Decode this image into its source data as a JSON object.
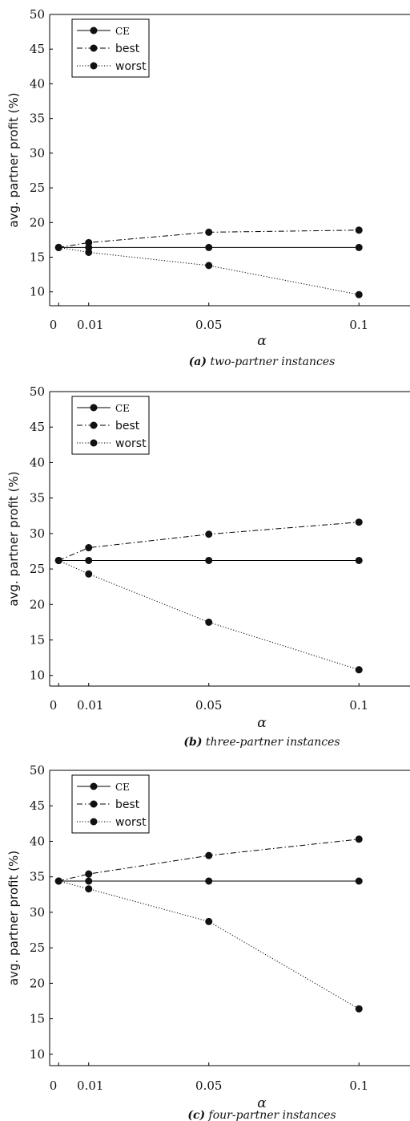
{
  "chart_data": [
    {
      "type": "line",
      "caption_tag": "(a)",
      "caption_text": "two-partner instances",
      "xlabel": "α",
      "ylabel": "avg. partner profit (%)",
      "x": [
        0,
        0.01,
        0.05,
        0.1
      ],
      "x_tick_labels": [
        "0",
        "0.01",
        "0.05",
        "0.1"
      ],
      "y_ticks": [
        10,
        15,
        20,
        25,
        30,
        35,
        40,
        45,
        50
      ],
      "ylim": [
        8,
        50
      ],
      "xlim": [
        -0.003,
        0.117
      ],
      "legend_position": "top-left",
      "series": [
        {
          "name": "CE",
          "style": "solid",
          "values": [
            16.4,
            16.4,
            16.4,
            16.4
          ]
        },
        {
          "name": "best",
          "style": "dashdot",
          "values": [
            16.4,
            17.1,
            18.6,
            18.9
          ]
        },
        {
          "name": "worst",
          "style": "dotted",
          "values": [
            16.4,
            15.7,
            13.8,
            9.6
          ]
        }
      ]
    },
    {
      "type": "line",
      "caption_tag": "(b)",
      "caption_text": "three-partner instances",
      "xlabel": "α",
      "ylabel": "avg. partner profit (%)",
      "x": [
        0,
        0.01,
        0.05,
        0.1
      ],
      "x_tick_labels": [
        "0",
        "0.01",
        "0.05",
        "0.1"
      ],
      "y_ticks": [
        10,
        15,
        20,
        25,
        30,
        35,
        40,
        45,
        50
      ],
      "ylim": [
        8.5,
        50
      ],
      "xlim": [
        -0.003,
        0.117
      ],
      "legend_position": "top-left",
      "series": [
        {
          "name": "CE",
          "style": "solid",
          "values": [
            26.2,
            26.2,
            26.2,
            26.2
          ]
        },
        {
          "name": "best",
          "style": "dashdot",
          "values": [
            26.2,
            28.0,
            29.9,
            31.6
          ]
        },
        {
          "name": "worst",
          "style": "dotted",
          "values": [
            26.2,
            24.3,
            17.5,
            10.8
          ]
        }
      ]
    },
    {
      "type": "line",
      "caption_tag": "(c)",
      "caption_text": "four-partner instances",
      "xlabel": "α",
      "ylabel": "avg. partner profit (%)",
      "x": [
        0,
        0.01,
        0.05,
        0.1
      ],
      "x_tick_labels": [
        "0",
        "0.01",
        "0.05",
        "0.1"
      ],
      "y_ticks": [
        10,
        15,
        20,
        25,
        30,
        35,
        40,
        45,
        50
      ],
      "ylim": [
        8.4,
        50
      ],
      "xlim": [
        -0.003,
        0.117
      ],
      "legend_position": "top-left",
      "series": [
        {
          "name": "CE",
          "style": "solid",
          "values": [
            34.4,
            34.4,
            34.4,
            34.4
          ]
        },
        {
          "name": "best",
          "style": "dashdot",
          "values": [
            34.4,
            35.4,
            38.0,
            40.3
          ]
        },
        {
          "name": "worst",
          "style": "dotted",
          "values": [
            34.4,
            33.3,
            28.7,
            16.4
          ]
        }
      ]
    }
  ]
}
